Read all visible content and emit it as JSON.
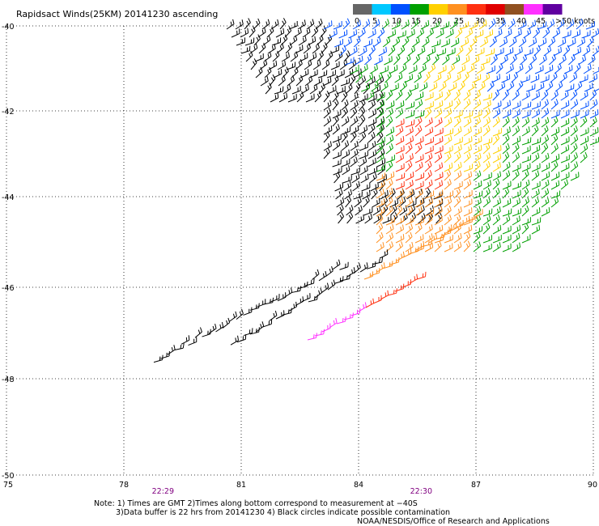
{
  "header": {
    "title": "Rapidsact Winds(25KM) 20141230 ascending"
  },
  "legend": {
    "labels": [
      "0",
      "5",
      "10",
      "15",
      "20",
      "25",
      "30",
      "35",
      "40",
      "45",
      ">50 knots"
    ],
    "colors": [
      "#666666",
      "#00c8ff",
      "#0050ff",
      "#00a000",
      "#ffd000",
      "#ff9020",
      "#ff3010",
      "#e00000",
      "#905020",
      "#ff30ff",
      "#6000a0"
    ]
  },
  "chart_data": {
    "type": "wind-barb map",
    "x_ticks": [
      "75",
      "78",
      "81",
      "84",
      "87",
      "90"
    ],
    "y_ticks": [
      "-40",
      "-42",
      "-44",
      "-46",
      "-48",
      "-50"
    ],
    "xlim": [
      75,
      90
    ],
    "ylim": [
      -50,
      -40
    ],
    "time_labels": [
      {
        "text": "22:29",
        "lon": 79
      },
      {
        "text": "22:30",
        "lon": 85.6
      }
    ],
    "color_scale_knots": [
      0,
      5,
      10,
      15,
      20,
      25,
      30,
      35,
      40,
      45,
      50
    ]
  },
  "notes": {
    "line1": "Note: 1) Times are GMT 2)Times along bottom correspond to measurement at −40S",
    "line2": "3)Data buffer is 22 hrs from 20141230 4) Black circles indicate possible contamination",
    "line3": "NOAA/NESDIS/Office of Research and Applications"
  }
}
